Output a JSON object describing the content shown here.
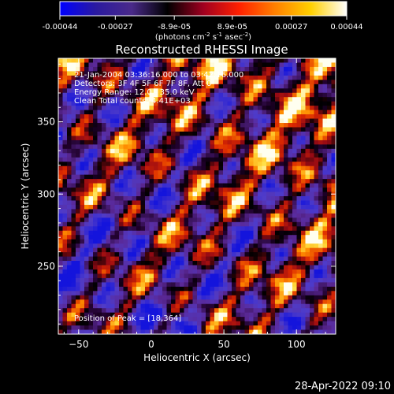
{
  "colorbar": {
    "stops": [
      "#0000ff",
      "#2a1aa0",
      "#4a2a8a",
      "#000000",
      "#a00020",
      "#ff2000",
      "#ff8000",
      "#ffd000",
      "#ffffff"
    ],
    "ticks": [
      "-0.00044",
      "-0.00027",
      "-8.9e-05",
      "8.9e-05",
      "0.00027",
      "0.00044"
    ],
    "unit": "(photons cm",
    "unit_exp1": "-2",
    "unit_mid": " s",
    "unit_exp2": "-1",
    "unit_end": " asec",
    "unit_exp3": "-2",
    "unit_close": ")"
  },
  "chart_data": {
    "type": "heatmap",
    "title": "Reconstructed RHESSI Image",
    "xlabel": "Heliocentric X (arcsec)",
    "ylabel": "Heliocentric Y (arcsec)",
    "xlim": [
      -64,
      127
    ],
    "ylim": [
      203,
      394
    ],
    "xticks": [
      -50,
      0,
      50,
      100
    ],
    "yticks": [
      250,
      300,
      350
    ],
    "xtick_labels": [
      "−50",
      "0",
      "50",
      "100"
    ],
    "ytick_labels": [
      "250",
      "300",
      "350"
    ],
    "annotations": [
      "21-Jan-2004 03:36:16.000 to 03:42:16.000",
      "Detectors: 3F 4F 5F 6F 7F 8F, Att 0",
      "Energy Range: 12.0 - 35.0 keV",
      "Clean      Total counts: 4.41E+03"
    ],
    "peak_label": "Position of Peak = [18,364]",
    "peak": [
      18,
      364
    ],
    "value_range": [
      -0.00044,
      0.00044
    ]
  },
  "footer": {
    "timestamp": "28-Apr-2022 09:10"
  }
}
